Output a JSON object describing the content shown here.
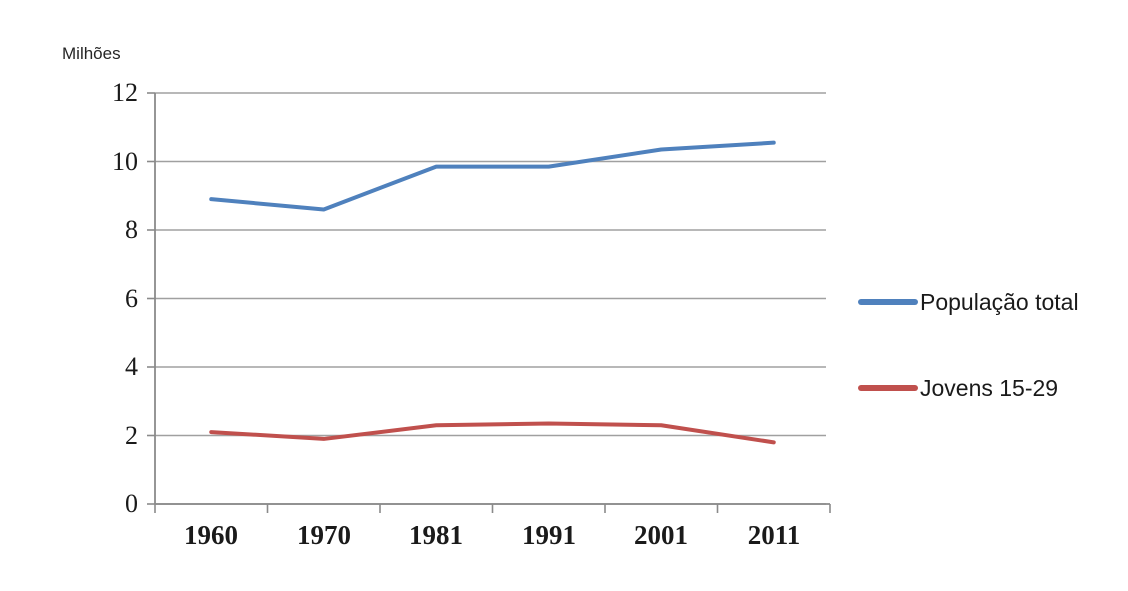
{
  "chart_data": {
    "type": "line",
    "title": "",
    "ylabel": "Milhões",
    "xlabel": "",
    "categories": [
      "1960",
      "1970",
      "1981",
      "1991",
      "2001",
      "2011"
    ],
    "series": [
      {
        "name": "População total",
        "color": "#4F81BD",
        "values": [
          8.9,
          8.6,
          9.85,
          9.85,
          10.35,
          10.55
        ]
      },
      {
        "name": "Jovens 15-29",
        "color": "#C0504D",
        "values": [
          2.1,
          1.9,
          2.3,
          2.35,
          2.3,
          1.8
        ]
      }
    ],
    "ylim": [
      0,
      12
    ],
    "yticks": [
      12,
      10,
      8,
      6,
      4,
      2,
      0
    ],
    "grid": "horizontal",
    "legend_position": "right",
    "gridline_color": "#A0A0A0",
    "axis_color": "#8A8A8A",
    "line_width": 4
  }
}
